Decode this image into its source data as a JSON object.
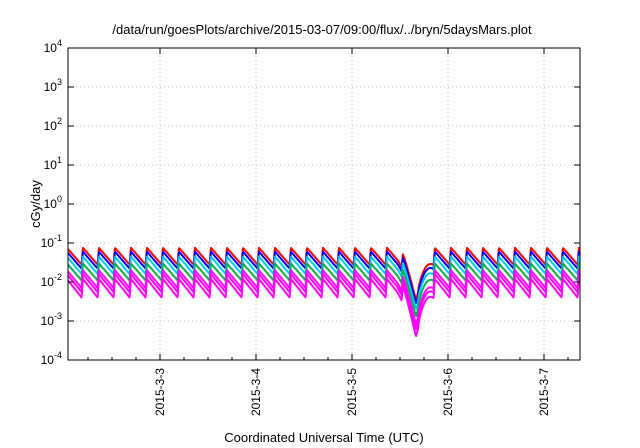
{
  "chart_data": {
    "type": "line",
    "title": "/data/run/goesPlots/archive/2015-03-07/09:00/flux/../bryn/5daysMars.plot",
    "xlabel": "Coordinated Universal Time (UTC)",
    "ylabel": "cGy/day",
    "y_scale": "log",
    "ylim": [
      0.0001,
      10000
    ],
    "y_ticks": [
      {
        "exp": "-4"
      },
      {
        "exp": "-3"
      },
      {
        "exp": "-2"
      },
      {
        "exp": "-1"
      },
      {
        "exp": "0"
      },
      {
        "exp": "1"
      },
      {
        "exp": "2"
      },
      {
        "exp": "3"
      },
      {
        "exp": "4"
      }
    ],
    "y_tick_base": "10",
    "xlim": [
      "2015-03-02T01:00",
      "2015-03-07T09:00"
    ],
    "x_ticks": [
      "2015-3-3",
      "2015-3-4",
      "2015-3-5",
      "2015-3-6",
      "2015-3-7"
    ],
    "grid": true,
    "legend": "none",
    "pattern": "sawtooth, ~6 cycles per day, dip near 2015-03-05 16:00",
    "series": [
      {
        "color": "#ff0000",
        "peak": 0.075,
        "trough": 0.028,
        "dip_min": 0.0035
      },
      {
        "color": "#0000ff",
        "peak": 0.06,
        "trough": 0.022,
        "dip_min": 0.0028
      },
      {
        "color": "#00c8ff",
        "peak": 0.045,
        "trough": 0.016,
        "dip_min": 0.002
      },
      {
        "color": "#00b050",
        "peak": 0.03,
        "trough": 0.011,
        "dip_min": 0.0013
      },
      {
        "color": "#ff00ff",
        "peak": 0.02,
        "trough": 0.007,
        "dip_min": 0.0008
      },
      {
        "color": "#ff00ff",
        "peak": 0.016,
        "trough": 0.0055,
        "dip_min": 0.0006
      },
      {
        "color": "#ff00ff",
        "peak": 0.012,
        "trough": 0.004,
        "dip_min": 0.0004
      }
    ]
  }
}
